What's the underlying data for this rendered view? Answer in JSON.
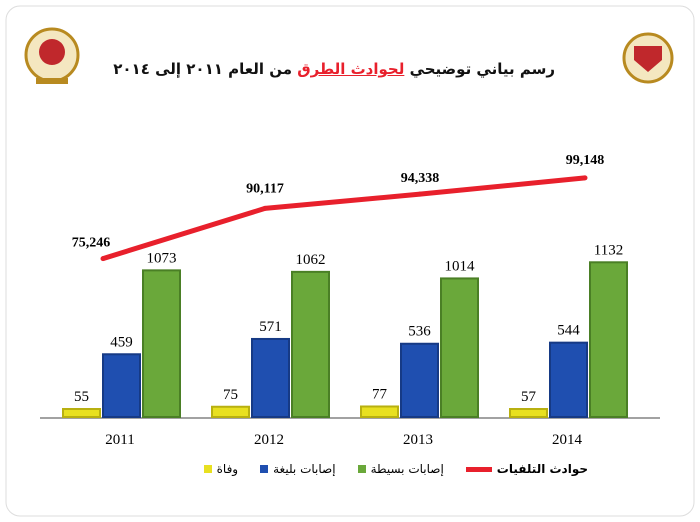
{
  "colors": {
    "deaths": "#e8e020",
    "severe": "#1f4fb0",
    "minor": "#6aa83a",
    "line": "#e8202c",
    "title_accent": "#e8202c"
  },
  "title": {
    "part1": "رسم بياني توضيحي ",
    "accent": "لحوادث الطرق",
    "part2": " من العام  ٢٠١١ إلى ٢٠١٤"
  },
  "logos": {
    "left": "emblem",
    "right": "emblem"
  },
  "chart_data": {
    "type": "bar",
    "title": "رسم بياني توضيحي لحوادث الطرق من العام ٢٠١١ إلى ٢٠١٤",
    "categories": [
      "2011",
      "2012",
      "2013",
      "2014"
    ],
    "series": [
      {
        "name": "وفاة",
        "type": "bar",
        "values": [
          55,
          75,
          77,
          57
        ]
      },
      {
        "name": "إصابات بليغة",
        "type": "bar",
        "values": [
          459,
          571,
          536,
          544
        ]
      },
      {
        "name": "إصابات بسيطة",
        "type": "bar",
        "values": [
          1073,
          1062,
          1014,
          1132
        ]
      },
      {
        "name": "حوادث التلفيات",
        "type": "line",
        "values": [
          75246,
          90117,
          94338,
          99148
        ],
        "labels": [
          "75,246",
          "90,117",
          "94,338",
          "99,148"
        ]
      }
    ],
    "bar_ylim": [
      0,
      1200
    ],
    "line_ylim": [
      28330,
      140000
    ],
    "legend_position": "bottom",
    "grid": false
  }
}
